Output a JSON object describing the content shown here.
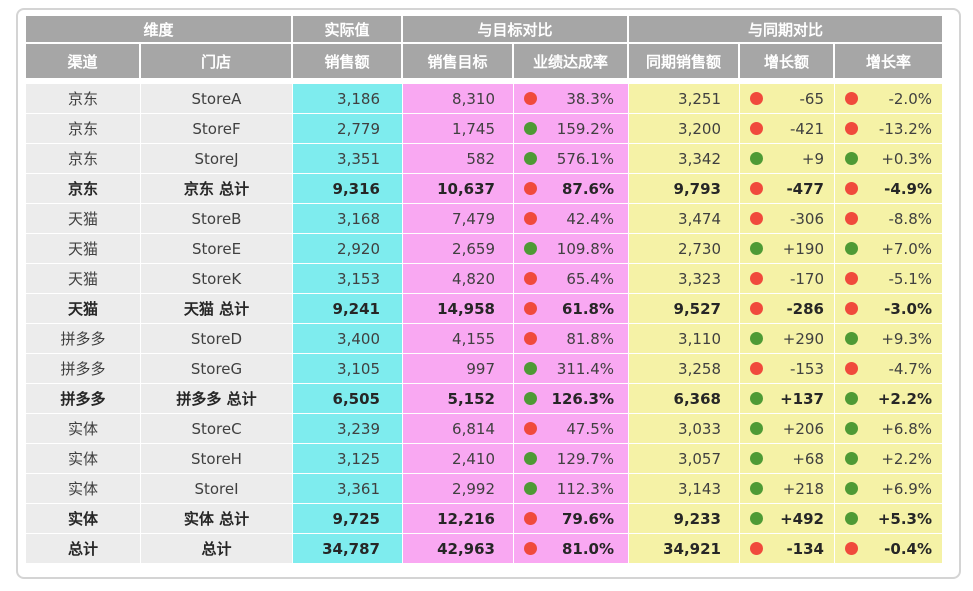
{
  "header": {
    "groups": [
      "维度",
      "实际值",
      "与目标对比",
      "与同期对比"
    ],
    "columns": [
      "渠道",
      "门店",
      "销售额",
      "销售目标",
      "业绩达成率",
      "同期销售额",
      "增长额",
      "增长率"
    ]
  },
  "colors": {
    "header_bg": "#a6a6a6",
    "dimension_bg": "#ececec",
    "actual_bg": "#7eecee",
    "target_bg": "#f9a8f2",
    "yoy_bg": "#f5f2a6",
    "indicator_bad": "#f04a3c",
    "indicator_good": "#4e9a35"
  },
  "rows": [
    {
      "type": "detail",
      "channel": "京东",
      "store": "StoreA",
      "sales": "3,186",
      "target": "8,310",
      "rate": "38.3%",
      "rate_status": "bad",
      "prior": "3,251",
      "growth": "-65",
      "growth_status": "bad",
      "growth_rate": "-2.0%",
      "growth_rate_status": "bad"
    },
    {
      "type": "detail",
      "channel": "京东",
      "store": "StoreF",
      "sales": "2,779",
      "target": "1,745",
      "rate": "159.2%",
      "rate_status": "good",
      "prior": "3,200",
      "growth": "-421",
      "growth_status": "bad",
      "growth_rate": "-13.2%",
      "growth_rate_status": "bad"
    },
    {
      "type": "detail",
      "channel": "京东",
      "store": "StoreJ",
      "sales": "3,351",
      "target": "582",
      "rate": "576.1%",
      "rate_status": "good",
      "prior": "3,342",
      "growth": "+9",
      "growth_status": "good",
      "growth_rate": "+0.3%",
      "growth_rate_status": "good"
    },
    {
      "type": "sub",
      "channel": "京东",
      "store": "京东 总计",
      "sales": "9,316",
      "target": "10,637",
      "rate": "87.6%",
      "rate_status": "bad",
      "prior": "9,793",
      "growth": "-477",
      "growth_status": "bad",
      "growth_rate": "-4.9%",
      "growth_rate_status": "bad"
    },
    {
      "type": "detail",
      "channel": "天猫",
      "store": "StoreB",
      "sales": "3,168",
      "target": "7,479",
      "rate": "42.4%",
      "rate_status": "bad",
      "prior": "3,474",
      "growth": "-306",
      "growth_status": "bad",
      "growth_rate": "-8.8%",
      "growth_rate_status": "bad"
    },
    {
      "type": "detail",
      "channel": "天猫",
      "store": "StoreE",
      "sales": "2,920",
      "target": "2,659",
      "rate": "109.8%",
      "rate_status": "good",
      "prior": "2,730",
      "growth": "+190",
      "growth_status": "good",
      "growth_rate": "+7.0%",
      "growth_rate_status": "good"
    },
    {
      "type": "detail",
      "channel": "天猫",
      "store": "StoreK",
      "sales": "3,153",
      "target": "4,820",
      "rate": "65.4%",
      "rate_status": "bad",
      "prior": "3,323",
      "growth": "-170",
      "growth_status": "bad",
      "growth_rate": "-5.1%",
      "growth_rate_status": "bad"
    },
    {
      "type": "sub",
      "channel": "天猫",
      "store": "天猫 总计",
      "sales": "9,241",
      "target": "14,958",
      "rate": "61.8%",
      "rate_status": "bad",
      "prior": "9,527",
      "growth": "-286",
      "growth_status": "bad",
      "growth_rate": "-3.0%",
      "growth_rate_status": "bad"
    },
    {
      "type": "detail",
      "channel": "拼多多",
      "store": "StoreD",
      "sales": "3,400",
      "target": "4,155",
      "rate": "81.8%",
      "rate_status": "bad",
      "prior": "3,110",
      "growth": "+290",
      "growth_status": "good",
      "growth_rate": "+9.3%",
      "growth_rate_status": "good"
    },
    {
      "type": "detail",
      "channel": "拼多多",
      "store": "StoreG",
      "sales": "3,105",
      "target": "997",
      "rate": "311.4%",
      "rate_status": "good",
      "prior": "3,258",
      "growth": "-153",
      "growth_status": "bad",
      "growth_rate": "-4.7%",
      "growth_rate_status": "bad"
    },
    {
      "type": "sub",
      "channel": "拼多多",
      "store": "拼多多 总计",
      "sales": "6,505",
      "target": "5,152",
      "rate": "126.3%",
      "rate_status": "good",
      "prior": "6,368",
      "growth": "+137",
      "growth_status": "good",
      "growth_rate": "+2.2%",
      "growth_rate_status": "good"
    },
    {
      "type": "detail",
      "channel": "实体",
      "store": "StoreC",
      "sales": "3,239",
      "target": "6,814",
      "rate": "47.5%",
      "rate_status": "bad",
      "prior": "3,033",
      "growth": "+206",
      "growth_status": "good",
      "growth_rate": "+6.8%",
      "growth_rate_status": "good"
    },
    {
      "type": "detail",
      "channel": "实体",
      "store": "StoreH",
      "sales": "3,125",
      "target": "2,410",
      "rate": "129.7%",
      "rate_status": "good",
      "prior": "3,057",
      "growth": "+68",
      "growth_status": "good",
      "growth_rate": "+2.2%",
      "growth_rate_status": "good"
    },
    {
      "type": "detail",
      "channel": "实体",
      "store": "StoreI",
      "sales": "3,361",
      "target": "2,992",
      "rate": "112.3%",
      "rate_status": "good",
      "prior": "3,143",
      "growth": "+218",
      "growth_status": "good",
      "growth_rate": "+6.9%",
      "growth_rate_status": "good"
    },
    {
      "type": "sub",
      "channel": "实体",
      "store": "实体 总计",
      "sales": "9,725",
      "target": "12,216",
      "rate": "79.6%",
      "rate_status": "bad",
      "prior": "9,233",
      "growth": "+492",
      "growth_status": "good",
      "growth_rate": "+5.3%",
      "growth_rate_status": "good"
    },
    {
      "type": "grand",
      "channel": "总计",
      "store": "总计",
      "sales": "34,787",
      "target": "42,963",
      "rate": "81.0%",
      "rate_status": "bad",
      "prior": "34,921",
      "growth": "-134",
      "growth_status": "bad",
      "growth_rate": "-0.4%",
      "growth_rate_status": "bad"
    }
  ]
}
